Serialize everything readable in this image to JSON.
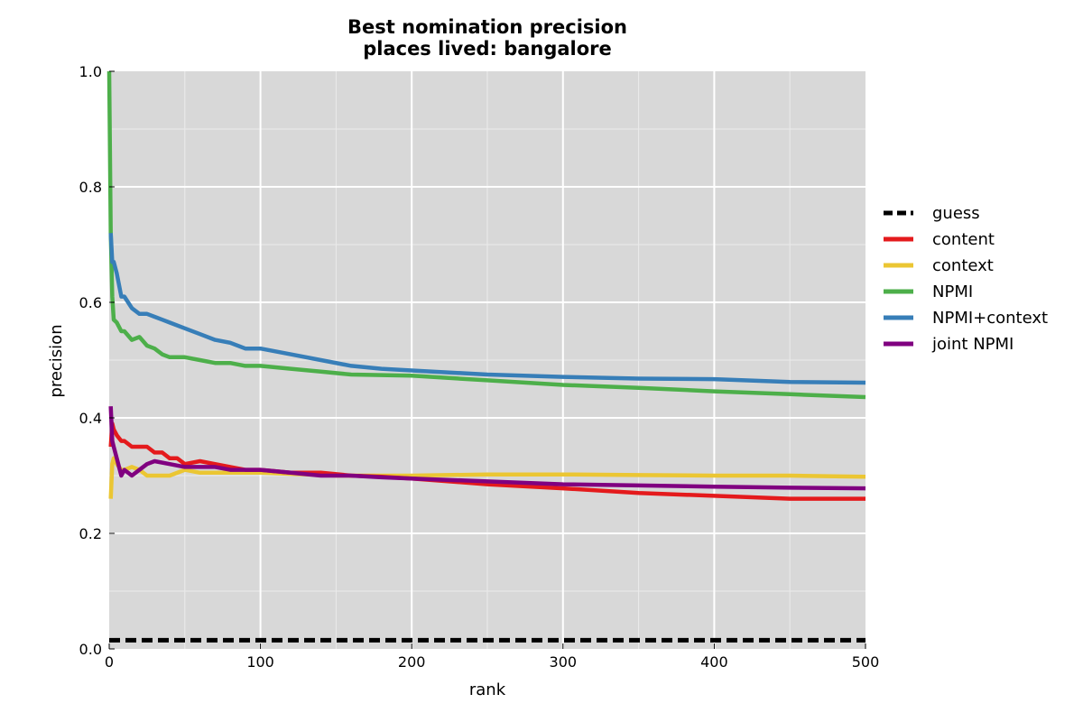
{
  "chart_data": {
    "type": "line",
    "title": "Best nomination precision",
    "subtitle": "places lived: bangalore",
    "xlabel": "rank",
    "ylabel": "precision",
    "xlim": [
      0,
      500
    ],
    "ylim": [
      0.0,
      1.0
    ],
    "x_ticks": [
      "0",
      "100",
      "200",
      "300",
      "400",
      "500"
    ],
    "y_ticks": [
      "0.0",
      "0.2",
      "0.4",
      "0.6",
      "0.8",
      "1.0"
    ],
    "grid": true,
    "legend_position": "outside-right",
    "series": [
      {
        "name": "guess",
        "color": "#000000",
        "dashed": true,
        "x": [
          0,
          500
        ],
        "y": [
          0.015,
          0.015
        ]
      },
      {
        "name": "content",
        "color": "#e41a1c",
        "dashed": false,
        "x": [
          1,
          2,
          3,
          5,
          8,
          10,
          15,
          20,
          25,
          30,
          35,
          40,
          45,
          50,
          60,
          70,
          80,
          90,
          100,
          120,
          140,
          160,
          180,
          200,
          250,
          300,
          350,
          400,
          450,
          500
        ],
        "y": [
          0.35,
          0.39,
          0.38,
          0.37,
          0.36,
          0.36,
          0.35,
          0.35,
          0.35,
          0.34,
          0.34,
          0.33,
          0.33,
          0.32,
          0.325,
          0.32,
          0.315,
          0.31,
          0.31,
          0.305,
          0.305,
          0.3,
          0.298,
          0.295,
          0.285,
          0.278,
          0.27,
          0.265,
          0.26,
          0.26
        ]
      },
      {
        "name": "context",
        "color": "#ebc633",
        "dashed": false,
        "x": [
          1,
          2,
          3,
          5,
          8,
          10,
          15,
          20,
          25,
          30,
          40,
          50,
          60,
          80,
          100,
          150,
          200,
          250,
          300,
          350,
          400,
          450,
          500
        ],
        "y": [
          0.26,
          0.32,
          0.33,
          0.32,
          0.31,
          0.31,
          0.315,
          0.31,
          0.3,
          0.3,
          0.3,
          0.31,
          0.305,
          0.305,
          0.305,
          0.3,
          0.3,
          0.302,
          0.302,
          0.301,
          0.3,
          0.3,
          0.298
        ]
      },
      {
        "name": "NPMI",
        "color": "#4daf4a",
        "dashed": false,
        "x": [
          0,
          1,
          2,
          3,
          5,
          8,
          10,
          15,
          20,
          25,
          30,
          35,
          40,
          50,
          60,
          70,
          80,
          90,
          100,
          120,
          140,
          160,
          180,
          200,
          250,
          300,
          350,
          400,
          450,
          500
        ],
        "y": [
          1.0,
          0.72,
          0.61,
          0.57,
          0.565,
          0.55,
          0.55,
          0.535,
          0.54,
          0.525,
          0.52,
          0.51,
          0.505,
          0.505,
          0.5,
          0.495,
          0.495,
          0.49,
          0.49,
          0.485,
          0.48,
          0.475,
          0.474,
          0.473,
          0.465,
          0.457,
          0.452,
          0.446,
          0.441,
          0.436
        ]
      },
      {
        "name": "NPMI+context",
        "color": "#377eb8",
        "dashed": false,
        "x": [
          1,
          2,
          3,
          5,
          8,
          10,
          15,
          20,
          25,
          30,
          35,
          40,
          50,
          60,
          70,
          80,
          90,
          100,
          120,
          140,
          160,
          180,
          200,
          250,
          300,
          350,
          400,
          450,
          500
        ],
        "y": [
          0.72,
          0.67,
          0.67,
          0.65,
          0.61,
          0.61,
          0.59,
          0.58,
          0.58,
          0.575,
          0.57,
          0.565,
          0.555,
          0.545,
          0.535,
          0.53,
          0.52,
          0.52,
          0.51,
          0.5,
          0.49,
          0.485,
          0.482,
          0.475,
          0.471,
          0.468,
          0.467,
          0.462,
          0.461
        ]
      },
      {
        "name": "joint NPMI",
        "color": "#800080",
        "dashed": false,
        "x": [
          1,
          2,
          3,
          5,
          8,
          10,
          15,
          20,
          25,
          30,
          40,
          50,
          60,
          70,
          80,
          90,
          100,
          120,
          140,
          160,
          180,
          200,
          250,
          300,
          350,
          400,
          450,
          500
        ],
        "y": [
          0.42,
          0.36,
          0.35,
          0.33,
          0.3,
          0.31,
          0.3,
          0.31,
          0.32,
          0.325,
          0.32,
          0.315,
          0.315,
          0.315,
          0.31,
          0.31,
          0.31,
          0.305,
          0.3,
          0.3,
          0.297,
          0.295,
          0.29,
          0.285,
          0.283,
          0.281,
          0.279,
          0.278
        ]
      }
    ]
  }
}
